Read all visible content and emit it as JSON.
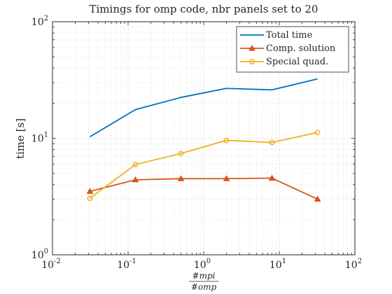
{
  "chart_data": {
    "type": "line",
    "title": "Timings for omp code, nbr panels set to 20",
    "xlabel_numerator": "#mpi",
    "xlabel_denominator": "#omp",
    "ylabel": "time [s]",
    "x_scale": "log",
    "y_scale": "log",
    "xlim": [
      0.01,
      100
    ],
    "ylim": [
      1,
      100
    ],
    "grid": "on (major and minor, dotted)",
    "legend_position": "top-right",
    "x_tick_labels": [
      {
        "base": "10",
        "exp": "-2"
      },
      {
        "base": "10",
        "exp": "-1"
      },
      {
        "base": "10",
        "exp": "0"
      },
      {
        "base": "10",
        "exp": "1"
      },
      {
        "base": "10",
        "exp": "2"
      }
    ],
    "y_tick_labels": [
      {
        "base": "10",
        "exp": "0"
      },
      {
        "base": "10",
        "exp": "1"
      },
      {
        "base": "10",
        "exp": "2"
      }
    ],
    "x": [
      0.03125,
      0.125,
      0.5,
      2,
      8,
      32
    ],
    "series": [
      {
        "name": "Total time",
        "color": "#0072BD",
        "marker": "none",
        "values": [
          10.3,
          17.6,
          22.4,
          26.8,
          26.0,
          32.3
        ]
      },
      {
        "name": "Comp. solution",
        "color": "#D95319",
        "marker": "triangle",
        "values": [
          3.5,
          4.4,
          4.5,
          4.5,
          4.55,
          3.0
        ]
      },
      {
        "name": "Special quad.",
        "color": "#EDB120",
        "marker": "circle",
        "values": [
          3.05,
          5.95,
          7.4,
          9.6,
          9.2,
          11.2
        ]
      }
    ]
  }
}
